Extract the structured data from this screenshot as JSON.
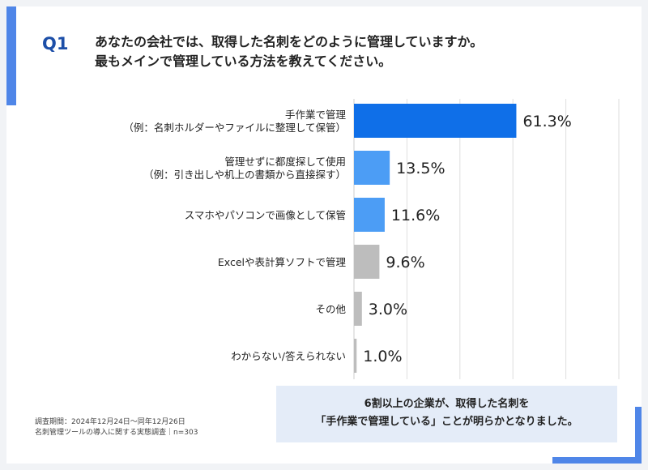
{
  "question": {
    "label": "Q1",
    "line1": "あなたの会社では、取得した名刺をどのように管理していますか。",
    "line2": "最もメインで管理している方法を教えてください。"
  },
  "chart_data": {
    "type": "bar",
    "orientation": "horizontal",
    "categories": [
      [
        "手作業で管理",
        "（例：名刺ホルダーやファイルに整理して保管）"
      ],
      [
        "管理せずに都度探して使用",
        "（例：引き出しや机上の書類から直接探す）"
      ],
      [
        "スマホやパソコンで画像として保管"
      ],
      [
        "Excelや表計算ソフトで管理"
      ],
      [
        "その他"
      ],
      [
        "わからない/答えられない"
      ]
    ],
    "values": [
      61.3,
      13.5,
      11.6,
      9.6,
      3.0,
      1.0
    ],
    "value_labels": [
      "61.3%",
      "13.5%",
      "11.6%",
      "9.6%",
      "3.0%",
      "1.0%"
    ],
    "colors": [
      "#0f6fe8",
      "#4c9df5",
      "#4c9df5",
      "#bdbdbd",
      "#bdbdbd",
      "#bdbdbd"
    ],
    "xlim": [
      0,
      100
    ],
    "grid": true
  },
  "callout": {
    "line1": "6割以上の企業が、取得した名刺を",
    "line2": "「手作業で管理している」ことが明らかとなりました。"
  },
  "footnote": {
    "line1": "調査期間：2024年12月24日〜同年12月26日",
    "line2": "名刺管理ツールの導入に関する実態調査｜n=303"
  }
}
